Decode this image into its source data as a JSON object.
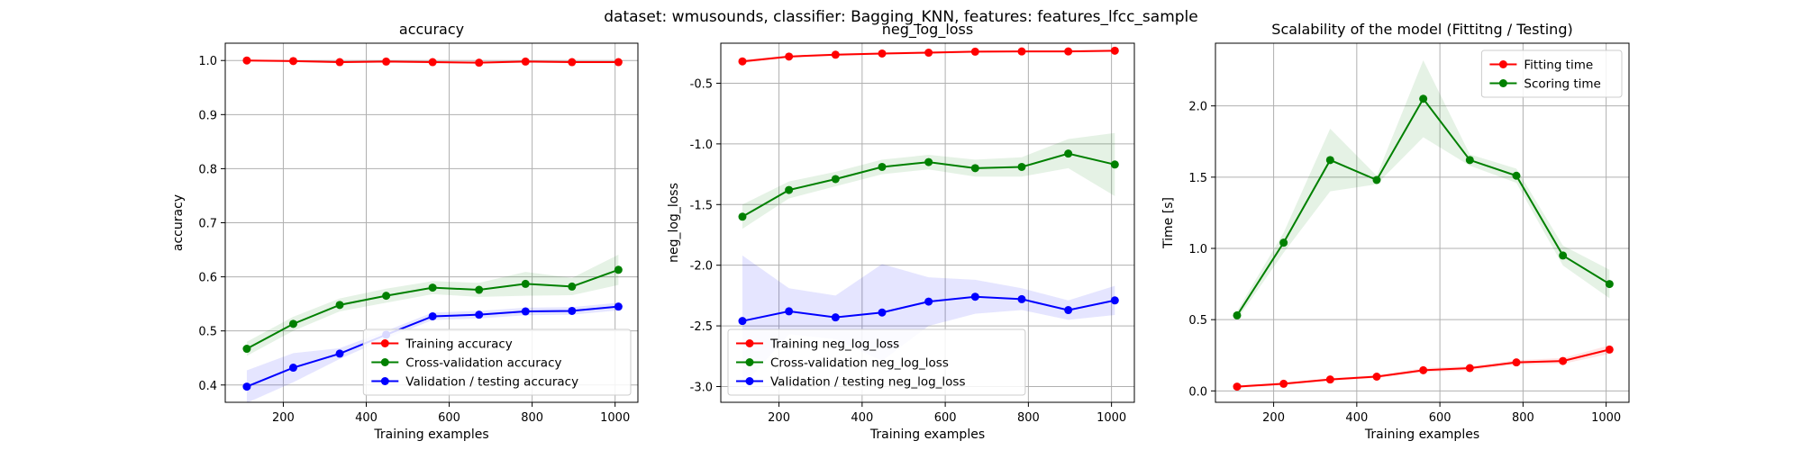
{
  "suptitle": "dataset: wmusounds, classifier: Bagging_KNN, features: features_lfcc_sample",
  "colors": {
    "red": "#ff0000",
    "green": "#008000",
    "blue": "#0000ff",
    "grid": "#b0b0b0"
  },
  "chart_data": [
    {
      "type": "line",
      "title": "accuracy",
      "xlabel": "Training examples",
      "ylabel": "accuracy",
      "xlim": [
        60,
        1055
      ],
      "ylim": [
        0.368,
        1.032
      ],
      "xticks": [
        200,
        400,
        600,
        800,
        1000
      ],
      "yticks": [
        0.4,
        0.5,
        0.6,
        0.7,
        0.8,
        0.9,
        1.0
      ],
      "ytick_decimals": 1,
      "grid": true,
      "legend": "lower-right",
      "x": [
        112,
        224,
        336,
        448,
        560,
        672,
        784,
        896,
        1008
      ],
      "series": [
        {
          "name": "Training accuracy",
          "color": "red",
          "values": [
            1.0,
            0.999,
            0.997,
            0.998,
            0.997,
            0.996,
            0.998,
            0.997,
            0.997
          ],
          "band": [
            0.002,
            0.002,
            0.002,
            0.002,
            0.002,
            0.002,
            0.002,
            0.002,
            0.002
          ]
        },
        {
          "name": "Cross-validation accuracy",
          "color": "green",
          "values": [
            0.467,
            0.513,
            0.548,
            0.565,
            0.58,
            0.576,
            0.587,
            0.582,
            0.613
          ],
          "band": [
            0.013,
            0.013,
            0.012,
            0.013,
            0.012,
            0.013,
            0.022,
            0.016,
            0.028
          ]
        },
        {
          "name": "Validation / testing accuracy",
          "color": "blue",
          "values": [
            0.397,
            0.432,
            0.458,
            0.493,
            0.527,
            0.53,
            0.536,
            0.537,
            0.545
          ],
          "band": [
            0.03,
            0.027,
            0.01,
            0.007,
            0.007,
            0.007,
            0.007,
            0.007,
            0.007
          ]
        }
      ]
    },
    {
      "type": "line",
      "title": "neg_log_loss",
      "xlabel": "Training examples",
      "ylabel": "neg_log_loss",
      "xlim": [
        60,
        1055
      ],
      "ylim": [
        -3.13,
        -0.17
      ],
      "xticks": [
        200,
        400,
        600,
        800,
        1000
      ],
      "yticks": [
        -3.0,
        -2.5,
        -2.0,
        -1.5,
        -1.0,
        -0.5
      ],
      "ytick_decimals": 1,
      "grid": true,
      "legend": "lower-left",
      "x": [
        112,
        224,
        336,
        448,
        560,
        672,
        784,
        896,
        1008
      ],
      "series": [
        {
          "name": "Training neg_log_loss",
          "color": "red",
          "values": [
            -0.32,
            -0.28,
            -0.265,
            -0.255,
            -0.248,
            -0.24,
            -0.238,
            -0.238,
            -0.232
          ],
          "band": [
            0.015,
            0.01,
            0.01,
            0.01,
            0.01,
            0.01,
            0.01,
            0.01,
            0.01
          ]
        },
        {
          "name": "Cross-validation neg_log_loss",
          "color": "green",
          "values": [
            -1.6,
            -1.38,
            -1.29,
            -1.19,
            -1.15,
            -1.2,
            -1.19,
            -1.08,
            -1.17
          ],
          "band": [
            0.1,
            0.07,
            0.06,
            0.06,
            0.06,
            0.07,
            0.08,
            0.12,
            0.26
          ]
        },
        {
          "name": "Validation / testing neg_log_loss",
          "color": "blue",
          "values": [
            -2.46,
            -2.38,
            -2.43,
            -2.39,
            -2.3,
            -2.26,
            -2.28,
            -2.37,
            -2.29
          ],
          "band": [
            0.54,
            0.19,
            0.18,
            0.4,
            0.2,
            0.14,
            0.09,
            0.08,
            0.12
          ]
        }
      ]
    },
    {
      "type": "line",
      "title": "Scalability of the model (Fittitng / Testing)",
      "xlabel": "Training examples",
      "ylabel": "Time [s]",
      "xlim": [
        60,
        1055
      ],
      "ylim": [
        -0.08,
        2.44
      ],
      "xticks": [
        200,
        400,
        600,
        800,
        1000
      ],
      "yticks": [
        0.0,
        0.5,
        1.0,
        1.5,
        2.0
      ],
      "ytick_decimals": 1,
      "grid": true,
      "legend": "top-right",
      "x": [
        112,
        224,
        336,
        448,
        560,
        672,
        784,
        896,
        1008
      ],
      "series": [
        {
          "name": "Fitting time",
          "color": "red",
          "values": [
            0.03,
            0.05,
            0.08,
            0.1,
            0.145,
            0.16,
            0.2,
            0.21,
            0.29
          ],
          "band": [
            0.01,
            0.01,
            0.01,
            0.01,
            0.015,
            0.015,
            0.015,
            0.02,
            0.03
          ]
        },
        {
          "name": "Scoring time",
          "color": "green",
          "values": [
            0.53,
            1.04,
            1.62,
            1.48,
            2.05,
            1.62,
            1.51,
            0.95,
            0.75
          ],
          "band": [
            0.03,
            0.07,
            0.22,
            0.03,
            0.27,
            0.04,
            0.05,
            0.07,
            0.1
          ]
        }
      ]
    }
  ]
}
